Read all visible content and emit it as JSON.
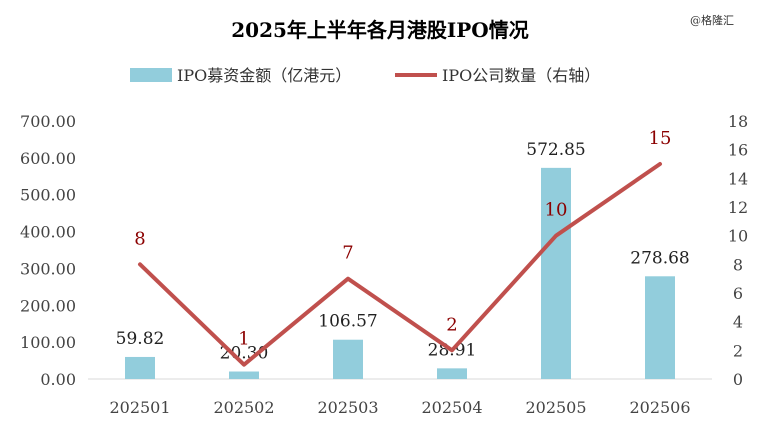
{
  "watermark": "@格隆汇",
  "chart_data": {
    "type": "bar+line",
    "title": "2025年上半年各月港股IPO情况",
    "categories": [
      "202501",
      "202502",
      "202503",
      "202504",
      "202505",
      "202506"
    ],
    "series": [
      {
        "name": "IPO募资金额（亿港元）",
        "type": "bar",
        "axis": "left",
        "values": [
          59.82,
          20.3,
          106.57,
          28.91,
          572.85,
          278.68
        ],
        "value_labels": [
          "59.82",
          "20.30",
          "106.57",
          "28.91",
          "572.85",
          "278.68"
        ],
        "color": "#92cddc"
      },
      {
        "name": "IPO公司数量（右轴）",
        "type": "line",
        "axis": "right",
        "values": [
          8,
          1,
          7,
          2,
          10,
          15
        ],
        "value_labels": [
          "8",
          "1",
          "7",
          "2",
          "10",
          "15"
        ],
        "color": "#c0504d",
        "label_color": "#8b0000"
      }
    ],
    "y_left": {
      "ylim": [
        0,
        700
      ],
      "ticks": [
        0,
        100,
        200,
        300,
        400,
        500,
        600,
        700
      ],
      "tick_labels": [
        "0.00",
        "100.00",
        "200.00",
        "300.00",
        "400.00",
        "500.00",
        "600.00",
        "700.00"
      ]
    },
    "y_right": {
      "ylim": [
        0,
        18
      ],
      "ticks": [
        0,
        2,
        4,
        6,
        8,
        10,
        12,
        14,
        16,
        18
      ],
      "tick_labels": [
        "0",
        "2",
        "4",
        "6",
        "8",
        "10",
        "12",
        "14",
        "16",
        "18"
      ]
    },
    "legend_position": "top-center",
    "grid": false
  }
}
